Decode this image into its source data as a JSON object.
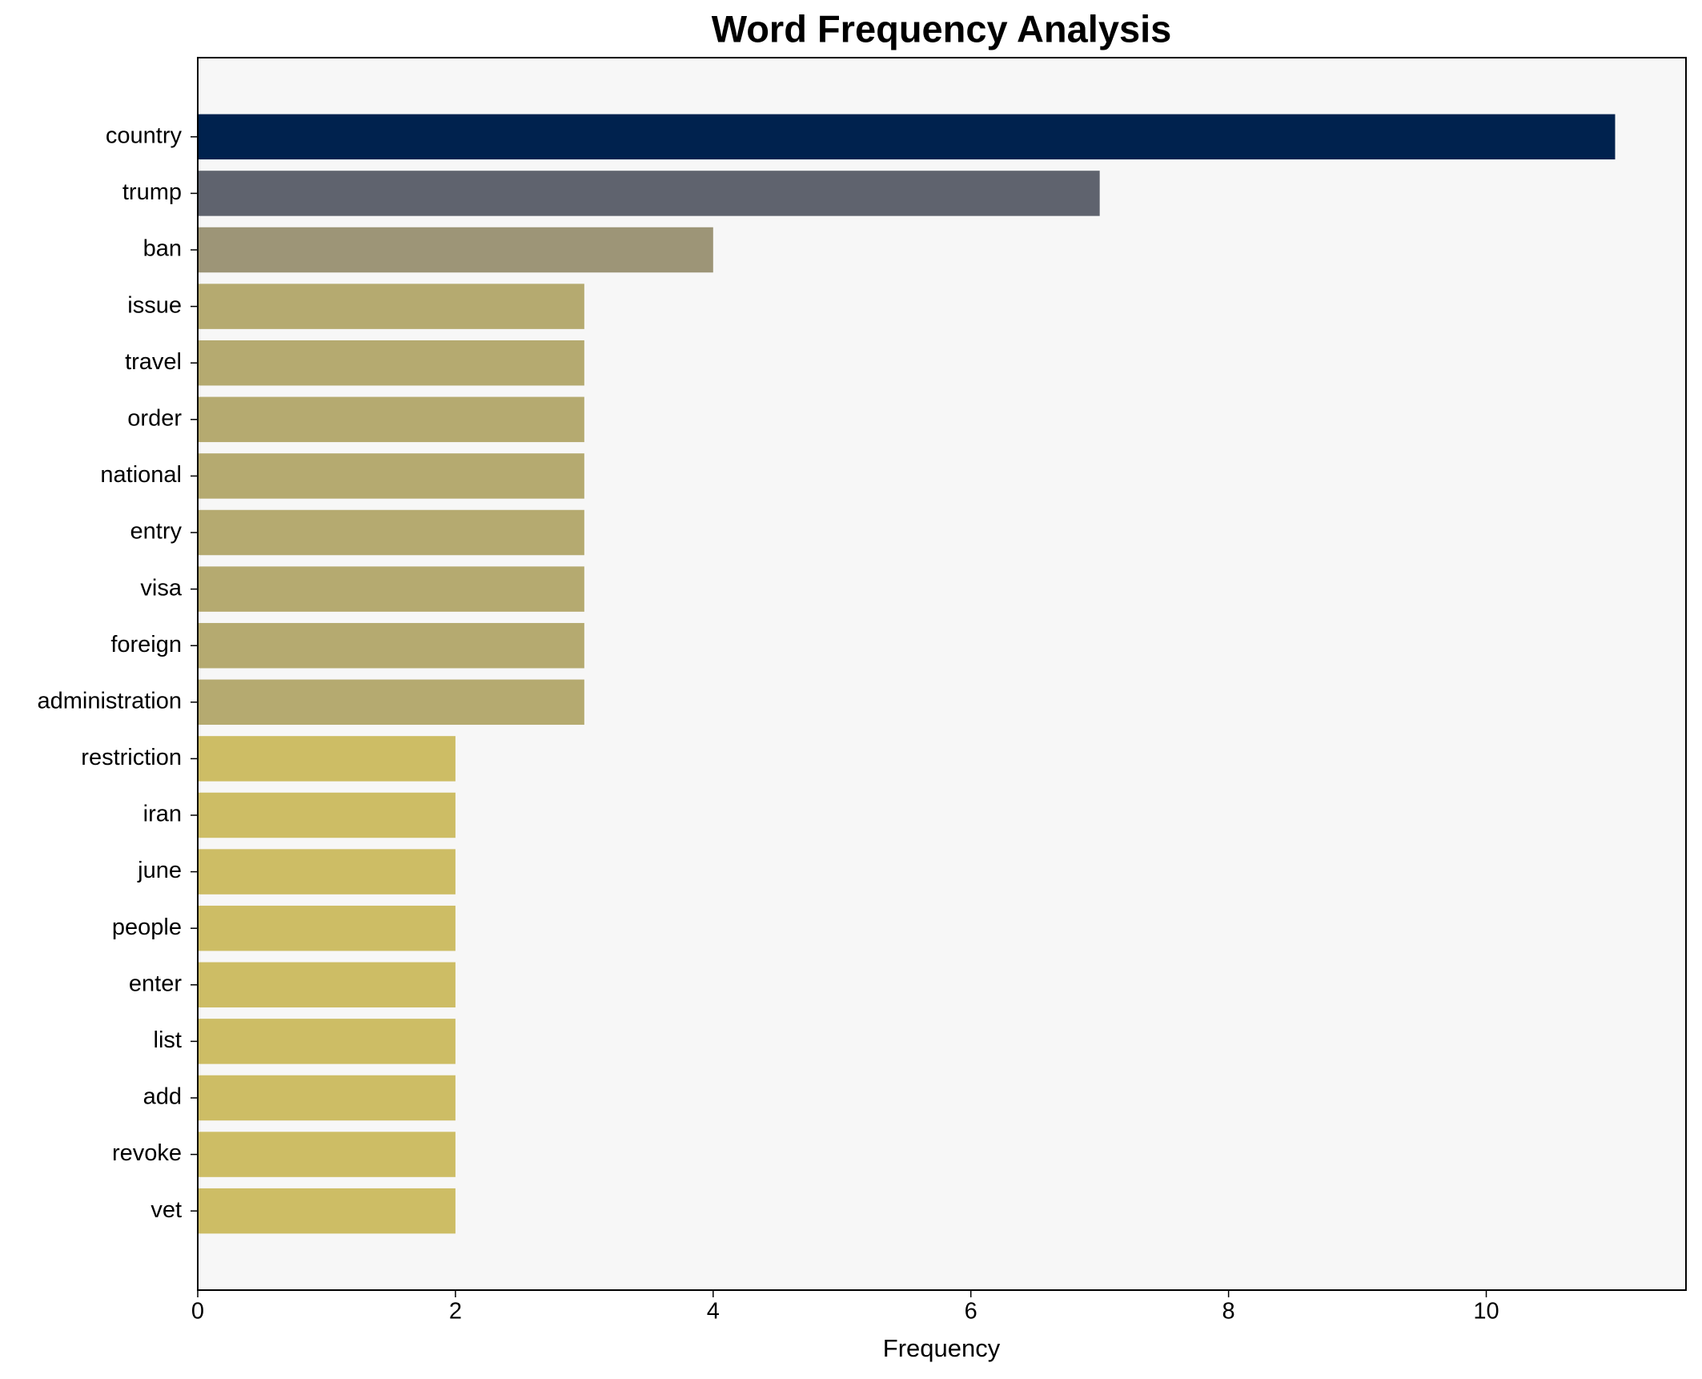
{
  "chart_data": {
    "type": "barh",
    "title": "Word Frequency Analysis",
    "x_label": "Frequency",
    "categories": [
      "country",
      "trump",
      "ban",
      "issue",
      "travel",
      "order",
      "national",
      "entry",
      "visa",
      "foreign",
      "administration",
      "restriction",
      "iran",
      "june",
      "people",
      "enter",
      "list",
      "add",
      "revoke",
      "vet"
    ],
    "values": [
      11,
      7,
      4,
      3,
      3,
      3,
      3,
      3,
      3,
      3,
      3,
      2,
      2,
      2,
      2,
      2,
      2,
      2,
      2,
      2
    ],
    "colors": [
      "#00224e",
      "#5f636e",
      "#9d9577",
      "#b5aa70",
      "#b5aa70",
      "#b5aa70",
      "#b5aa70",
      "#b5aa70",
      "#b5aa70",
      "#b5aa70",
      "#b5aa70",
      "#cdbd65",
      "#cdbd65",
      "#cdbd65",
      "#cdbd65",
      "#cdbd65",
      "#cdbd65",
      "#cdbd65",
      "#cdbd65",
      "#cdbd65"
    ],
    "xlim": [
      0,
      11.55
    ],
    "xticks": [
      0,
      2,
      4,
      6,
      8,
      10
    ],
    "grid": false
  }
}
